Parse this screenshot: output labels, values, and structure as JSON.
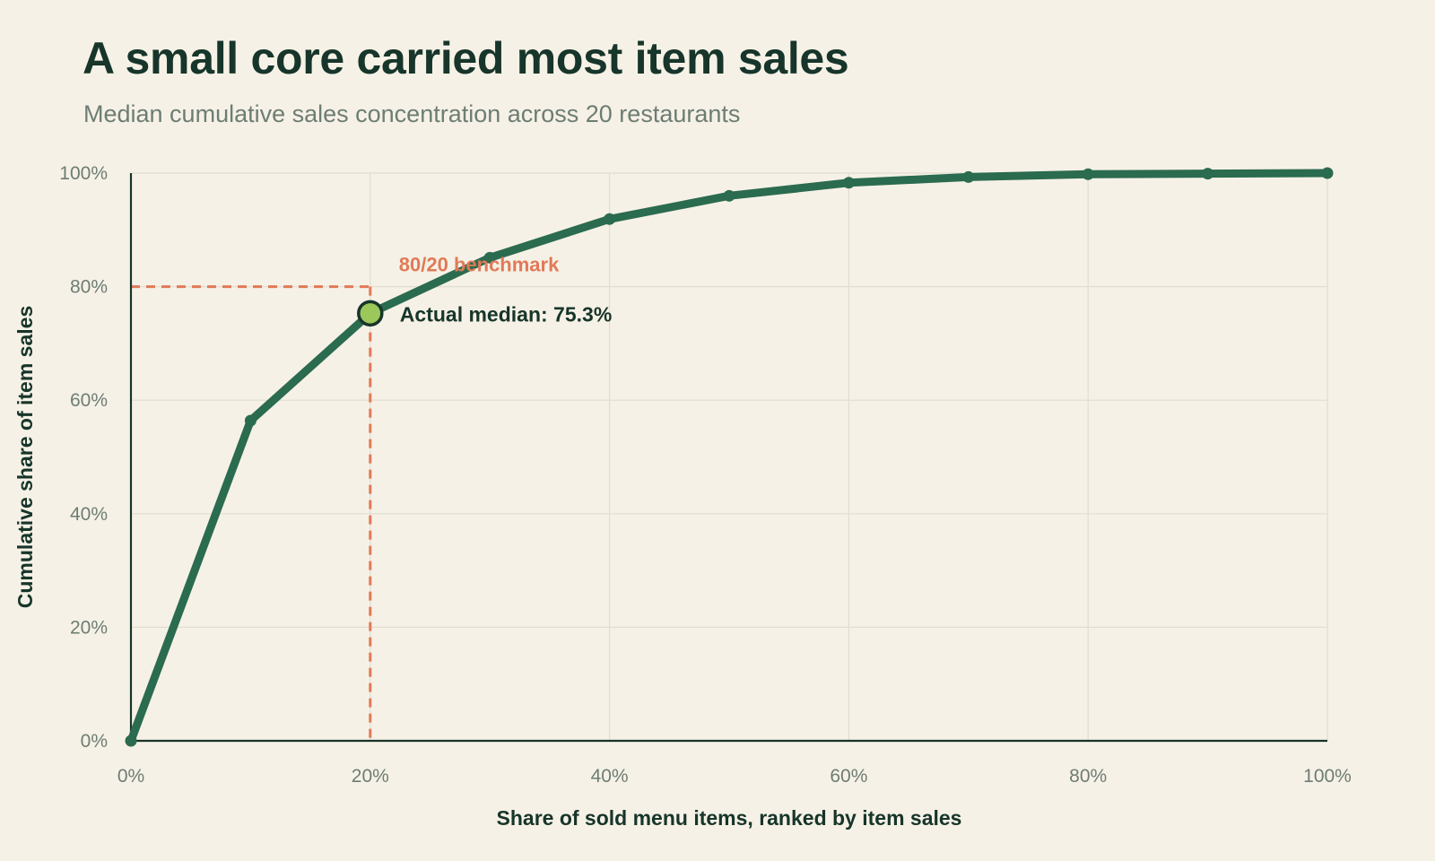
{
  "header": {
    "title": "A small core carried most item sales",
    "subtitle": "Median cumulative sales concentration across 20 restaurants"
  },
  "colors": {
    "background": "#f6f1e6",
    "line": "#2b6b4f",
    "benchmark": "#e07a58",
    "highlight_fill": "#9cc75b",
    "text_dark": "#17352a",
    "text_muted": "#6d7d74",
    "grid": "#e2ddd0"
  },
  "chart_data": {
    "type": "line",
    "title": "A small core carried most item sales",
    "subtitle": "Median cumulative sales concentration across 20 restaurants",
    "xlabel": "Share of sold menu items, ranked by item sales",
    "ylabel": "Cumulative share of item sales",
    "xlim": [
      0,
      100
    ],
    "ylim": [
      0,
      100
    ],
    "x_ticks": [
      0,
      20,
      40,
      60,
      80,
      100
    ],
    "x_tick_labels": [
      "0%",
      "20%",
      "40%",
      "60%",
      "80%",
      "100%"
    ],
    "y_ticks": [
      0,
      20,
      40,
      60,
      80,
      100
    ],
    "y_tick_labels": [
      "0%",
      "20%",
      "40%",
      "60%",
      "80%",
      "100%"
    ],
    "grid": true,
    "series": [
      {
        "x": [
          0,
          10,
          20,
          30,
          40,
          50,
          60,
          70,
          80,
          90,
          100
        ],
        "y": [
          0,
          56.4,
          75.3,
          85.1,
          91.9,
          96.0,
          98.3,
          99.3,
          99.8,
          99.9,
          100
        ]
      }
    ],
    "benchmark": {
      "x": 20,
      "y": 80,
      "label": "80/20 benchmark"
    },
    "highlight": {
      "x": 20,
      "y": 75.3,
      "label": "Actual median: 75.3%"
    }
  }
}
